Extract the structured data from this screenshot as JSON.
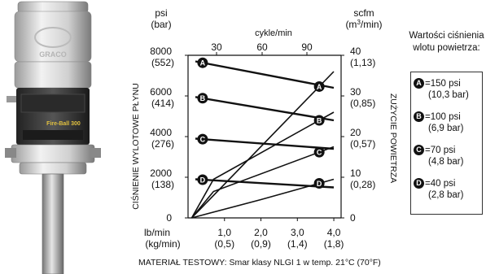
{
  "pump": {
    "brand_label": "GRACO",
    "model_label": "Fire-Ball 300"
  },
  "chart_data": {
    "type": "line",
    "x_top_label": "cykle/min",
    "x_top_ticks": [
      "30",
      "60",
      "90"
    ],
    "x_bottom_units": [
      "lb/min",
      "(kg/min)"
    ],
    "x_ticks": [
      {
        "x": 1.0,
        "label": "1,0",
        "sub": "(0,5)"
      },
      {
        "x": 2.0,
        "label": "2,0",
        "sub": "(0,9)"
      },
      {
        "x": 3.0,
        "label": "3,0",
        "sub": "(1,4)"
      },
      {
        "x": 4.0,
        "label": "4,0",
        "sub": "(1,8)"
      }
    ],
    "xlim": [
      0,
      4.2
    ],
    "y_left_units": [
      "psi",
      "(bar)"
    ],
    "y_left_title": "CIŚNIENIE WYLOTOWE PŁYNU",
    "y_left_ticks": [
      {
        "y": 8000,
        "label": "8000",
        "sub": "(552)"
      },
      {
        "y": 6000,
        "label": "6000",
        "sub": "(414)"
      },
      {
        "y": 4000,
        "label": "4000",
        "sub": "(276)"
      },
      {
        "y": 2000,
        "label": "2000",
        "sub": "(138)"
      },
      {
        "y": 0,
        "label": "0",
        "sub": ""
      }
    ],
    "ylim": [
      0,
      8000
    ],
    "y_right_units": [
      "scfm",
      "(m3/min)"
    ],
    "y_right_title": "ZUŻYCIE POWIETRZA",
    "y_right_ticks": [
      {
        "y": 40,
        "label": "40",
        "sub": "(1,13)"
      },
      {
        "y": 30,
        "label": "30",
        "sub": "(0,85)"
      },
      {
        "y": 20,
        "label": "20",
        "sub": "(0,57)"
      },
      {
        "y": 10,
        "label": "10",
        "sub": "(0,28)"
      },
      {
        "y": 0,
        "label": "0",
        "sub": ""
      }
    ],
    "y_right_lim": [
      0,
      40
    ],
    "note": "MATERIAŁ TESTOWY: Smar klasy NLGI 1 w temp. 21°C (70°F)",
    "legend_title": "Wartości ciśnienia wlotu powietrza:",
    "series": [
      {
        "name": "A",
        "psi_label": "=150 psi",
        "bar_label": "(10,3 bar)",
        "pressure": [
          [
            0.2,
            7700
          ],
          [
            4.0,
            6400
          ]
        ],
        "air": [
          [
            0.1,
            0
          ],
          [
            4.0,
            36
          ]
        ]
      },
      {
        "name": "B",
        "psi_label": "=100 psi",
        "bar_label": "(6,9 bar)",
        "pressure": [
          [
            0.2,
            5950
          ],
          [
            4.0,
            4800
          ]
        ],
        "air": [
          [
            0.1,
            0
          ],
          [
            0.7,
            9.5
          ],
          [
            4.0,
            26
          ]
        ]
      },
      {
        "name": "C",
        "psi_label": "=70 psi",
        "bar_label": "(4,8 bar)",
        "pressure": [
          [
            0.2,
            3900
          ],
          [
            4.0,
            3400
          ]
        ],
        "air": [
          [
            0.1,
            0
          ],
          [
            0.7,
            6.5
          ],
          [
            4.0,
            17.5
          ]
        ]
      },
      {
        "name": "D",
        "psi_label": "=40 psi",
        "bar_label": "(2,8 bar)",
        "pressure": [
          [
            0.2,
            1900
          ],
          [
            4.0,
            1500
          ]
        ],
        "air": [
          [
            0.1,
            0
          ],
          [
            2.0,
            4.5
          ],
          [
            4.0,
            9.5
          ]
        ]
      }
    ]
  }
}
